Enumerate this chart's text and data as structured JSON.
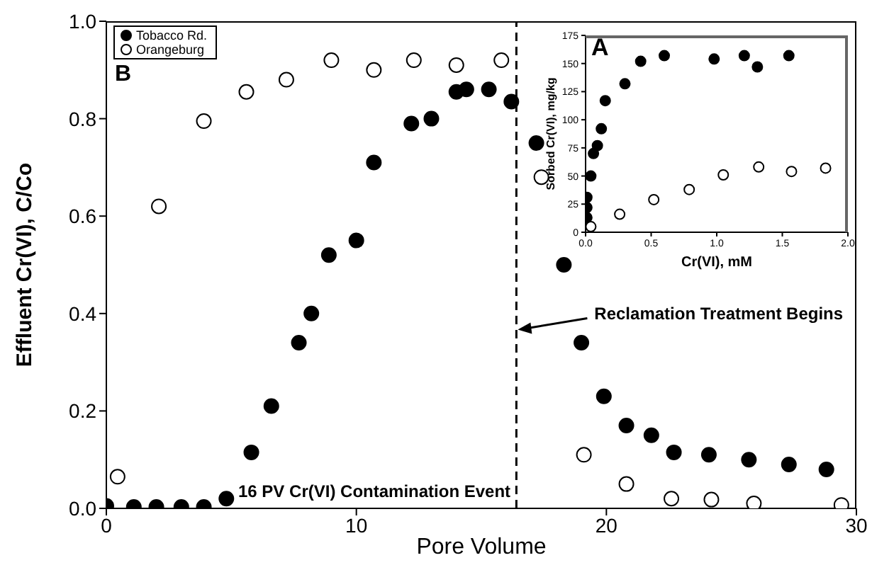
{
  "chart_data": [
    {
      "type": "scatter",
      "xlabel": "Pore Volume",
      "ylabel": "Effluent Cr(VI), C/Co",
      "xlim": [
        0,
        30
      ],
      "xticks": [
        0,
        10,
        20,
        30
      ],
      "ylim": [
        0,
        1
      ],
      "yticks": [
        {
          "value": 0,
          "label": "0.0"
        },
        {
          "value": 0.2,
          "label": "0.2"
        },
        {
          "value": 0.4,
          "label": "0.4"
        },
        {
          "value": 0.6,
          "label": "0.6"
        },
        {
          "value": 0.8,
          "label": "0.8"
        },
        {
          "value": 1,
          "label": "1.0"
        }
      ],
      "legend": "top left",
      "marker": "circle",
      "series": [
        {
          "name": "Tobacco Rd.",
          "color": "#000000",
          "x": [
            0,
            1.1,
            2,
            3,
            3.9,
            4.8,
            5.8,
            6.6,
            7.7,
            8.2,
            8.9,
            10,
            10.7,
            12.2,
            13,
            14,
            14.4,
            15.3,
            16.2,
            17.2,
            18.3,
            19,
            19.9,
            20.8,
            21.8,
            22.7,
            24.1,
            25.7,
            27.3,
            28.8
          ],
          "values": [
            0.005,
            0.003,
            0.003,
            0.003,
            0.003,
            0.02,
            0.115,
            0.21,
            0.34,
            0.4,
            0.52,
            0.55,
            0.71,
            0.79,
            0.8,
            0.855,
            0.86,
            0.86,
            0.835,
            0.75,
            0.5,
            0.34,
            0.23,
            0.17,
            0.15,
            0.115,
            0.11,
            0.1,
            0.09,
            0.08
          ]
        },
        {
          "name": "Orangeburg",
          "color": "#ffffff",
          "x": [
            0.45,
            2.1,
            3.9,
            5.6,
            7.2,
            9,
            10.7,
            12.3,
            14,
            15.8,
            17.4,
            19.1,
            20.8,
            22.6,
            24.2,
            25.9,
            29.4
          ],
          "values": [
            0.065,
            0.62,
            0.795,
            0.855,
            0.88,
            0.92,
            0.9,
            0.92,
            0.91,
            0.92,
            0.68,
            0.11,
            0.05,
            0.02,
            0.018,
            0.01,
            0.007
          ]
        }
      ],
      "ref_lines": [
        {
          "axis": "x",
          "value": 16.4,
          "label": "Reclamation Treatment Begins",
          "color": "#000000",
          "line_style": "dashed"
        }
      ],
      "annotations": [
        "B",
        "16 PV Cr(VI) Contamination Event"
      ]
    },
    {
      "type": "scatter",
      "xlabel": "Cr(VI), mM",
      "ylabel": "Sorbed Cr(VI), mg/kg",
      "xlim": [
        0,
        2
      ],
      "xticks": [
        {
          "value": 0,
          "label": "0.0"
        },
        {
          "value": 0.5,
          "label": "0.5"
        },
        {
          "value": 1,
          "label": "1.0"
        },
        {
          "value": 1.5,
          "label": "1.5"
        },
        {
          "value": 2,
          "label": "2.0"
        }
      ],
      "ylim": [
        0,
        175
      ],
      "yticks": [
        0,
        25,
        50,
        75,
        100,
        125,
        150,
        175
      ],
      "marker": "circle",
      "series": [
        {
          "color": "#000000",
          "x": [
            0.01,
            0.01,
            0.01,
            0.04,
            0.06,
            0.09,
            0.12,
            0.15,
            0.3,
            0.42,
            0.6,
            0.98,
            1.21,
            1.31,
            1.55
          ],
          "values": [
            13,
            22,
            31,
            50,
            70,
            77,
            92,
            117,
            132,
            152,
            157,
            154,
            157,
            147,
            157
          ]
        },
        {
          "color": "#ffffff",
          "x": [
            0.04,
            0.26,
            0.52,
            0.79,
            1.05,
            1.32,
            1.57,
            1.83
          ],
          "values": [
            5,
            16,
            29,
            38,
            51,
            58,
            54,
            57
          ]
        }
      ],
      "annotations": [
        "A"
      ]
    }
  ]
}
